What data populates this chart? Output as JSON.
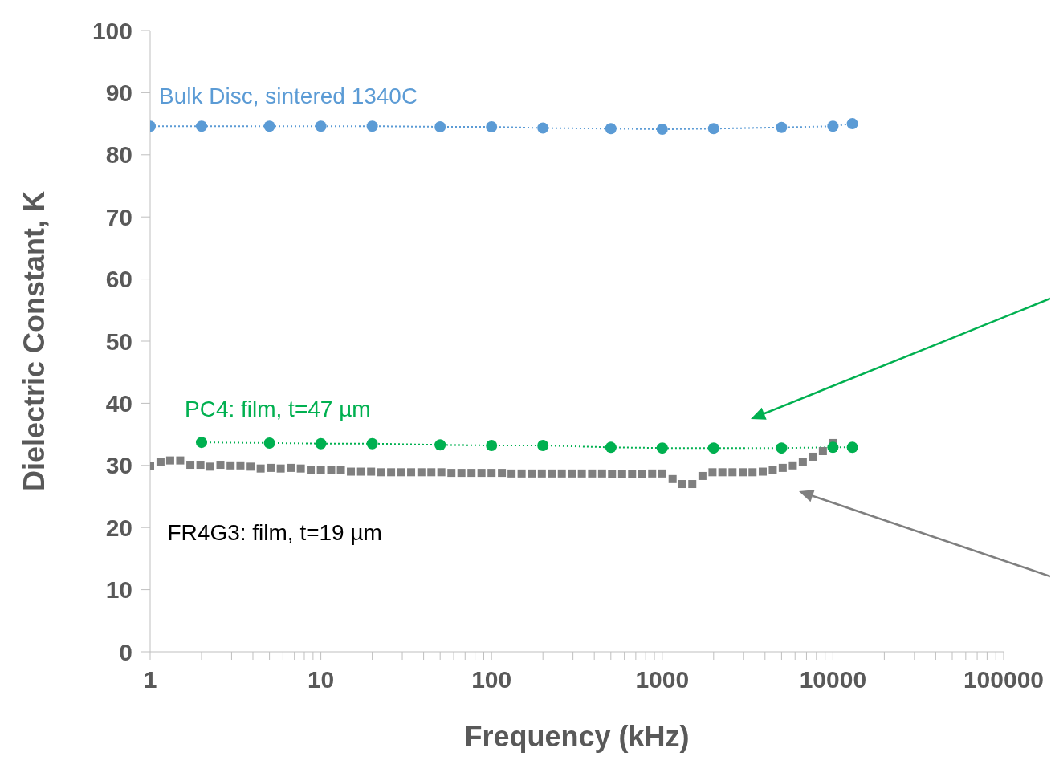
{
  "chart_data": {
    "type": "line",
    "xlabel": "Frequency (kHz)",
    "ylabel": "Dielectric Constant, K",
    "log": "x",
    "xlim": [
      1,
      100000
    ],
    "xticks": [
      1,
      {
        "value": 2,
        "label": null
      },
      {
        "value": 3,
        "label": null
      },
      {
        "value": 4,
        "label": null
      },
      {
        "value": 5,
        "label": null
      },
      {
        "value": 6,
        "label": null
      },
      {
        "value": 7,
        "label": null
      },
      {
        "value": 8,
        "label": null
      },
      {
        "value": 9,
        "label": null
      },
      10,
      {
        "value": 20,
        "label": null
      },
      {
        "value": 30,
        "label": null
      },
      {
        "value": 40,
        "label": null
      },
      {
        "value": 50,
        "label": null
      },
      {
        "value": 60,
        "label": null
      },
      {
        "value": 70,
        "label": null
      },
      {
        "value": 80,
        "label": null
      },
      {
        "value": 90,
        "label": null
      },
      100,
      {
        "value": 200,
        "label": null
      },
      {
        "value": 300,
        "label": null
      },
      {
        "value": 400,
        "label": null
      },
      {
        "value": 500,
        "label": null
      },
      {
        "value": 600,
        "label": null
      },
      {
        "value": 700,
        "label": null
      },
      {
        "value": 800,
        "label": null
      },
      {
        "value": 900,
        "label": null
      },
      1000,
      {
        "value": 2000,
        "label": null
      },
      {
        "value": 3000,
        "label": null
      },
      {
        "value": 4000,
        "label": null
      },
      {
        "value": 5000,
        "label": null
      },
      {
        "value": 6000,
        "label": null
      },
      {
        "value": 7000,
        "label": null
      },
      {
        "value": 8000,
        "label": null
      },
      {
        "value": 9000,
        "label": null
      },
      10000,
      {
        "value": 20000,
        "label": null
      },
      {
        "value": 30000,
        "label": null
      },
      {
        "value": 40000,
        "label": null
      },
      {
        "value": 50000,
        "label": null
      },
      {
        "value": 60000,
        "label": null
      },
      {
        "value": 70000,
        "label": null
      },
      {
        "value": 80000,
        "label": null
      },
      {
        "value": 90000,
        "label": null
      },
      100000
    ],
    "ylim": [
      0,
      100
    ],
    "yticks": [
      0,
      10,
      20,
      30,
      40,
      50,
      60,
      70,
      80,
      90,
      100
    ],
    "grid": false,
    "legend": false,
    "series": [
      {
        "name": "FR4G3: film, t=19 µm",
        "type": "scatter",
        "marker": "square",
        "color": "#7f7f7f",
        "x": [
          1,
          1.15,
          1.31,
          1.5,
          1.72,
          1.97,
          2.25,
          2.58,
          2.96,
          3.38,
          3.88,
          4.44,
          5.08,
          5.82,
          6.66,
          7.63,
          8.73,
          10,
          11.5,
          13.1,
          15,
          17.2,
          19.7,
          22.5,
          25.8,
          29.6,
          33.8,
          38.8,
          44.4,
          50.8,
          58.2,
          66.6,
          76.3,
          87.3,
          100,
          115,
          131,
          150,
          172,
          197,
          225,
          258,
          296,
          338,
          388,
          444,
          508,
          582,
          666,
          763,
          873,
          1000,
          1150,
          1310,
          1500,
          1720,
          1970,
          2250,
          2580,
          2960,
          3380,
          3880,
          4440,
          5080,
          5820,
          6660,
          7630,
          8730,
          10000
        ],
        "values": [
          29.9,
          30.5,
          30.8,
          30.8,
          30.1,
          30.1,
          29.8,
          30.1,
          30.0,
          30.0,
          29.8,
          29.5,
          29.6,
          29.5,
          29.6,
          29.5,
          29.2,
          29.2,
          29.3,
          29.2,
          29.0,
          29.0,
          29.0,
          28.9,
          28.9,
          28.9,
          28.9,
          28.9,
          28.9,
          28.9,
          28.8,
          28.8,
          28.8,
          28.8,
          28.8,
          28.8,
          28.7,
          28.7,
          28.7,
          28.7,
          28.7,
          28.7,
          28.7,
          28.7,
          28.7,
          28.7,
          28.6,
          28.6,
          28.6,
          28.6,
          28.7,
          28.7,
          27.8,
          27.0,
          27.0,
          28.3,
          28.9,
          28.9,
          28.9,
          28.9,
          28.9,
          29.0,
          29.2,
          29.6,
          30.0,
          30.5,
          31.4,
          32.3,
          33.6
        ]
      },
      {
        "name": "PC4: film, t=47 µm",
        "type": "line",
        "marker": "circle",
        "line_style": "dotted",
        "color": "#00b050",
        "x": [
          2,
          5,
          10,
          20,
          50,
          100,
          200,
          500,
          1000,
          2000,
          5000,
          10000,
          13000
        ],
        "values": [
          33.7,
          33.6,
          33.5,
          33.5,
          33.3,
          33.2,
          33.2,
          32.9,
          32.8,
          32.8,
          32.8,
          32.9,
          32.9
        ]
      },
      {
        "name": "Bulk Disc, sintered 1340C",
        "type": "line",
        "marker": "circle",
        "line_style": "dotted",
        "color": "#5b9bd5",
        "x": [
          1,
          2,
          5,
          10,
          20,
          50,
          100,
          200,
          500,
          1000,
          2000,
          5000,
          10000,
          13000
        ],
        "values": [
          84.6,
          84.6,
          84.6,
          84.6,
          84.6,
          84.5,
          84.5,
          84.3,
          84.2,
          84.1,
          84.2,
          84.4,
          84.6,
          85.0
        ]
      }
    ]
  }
}
